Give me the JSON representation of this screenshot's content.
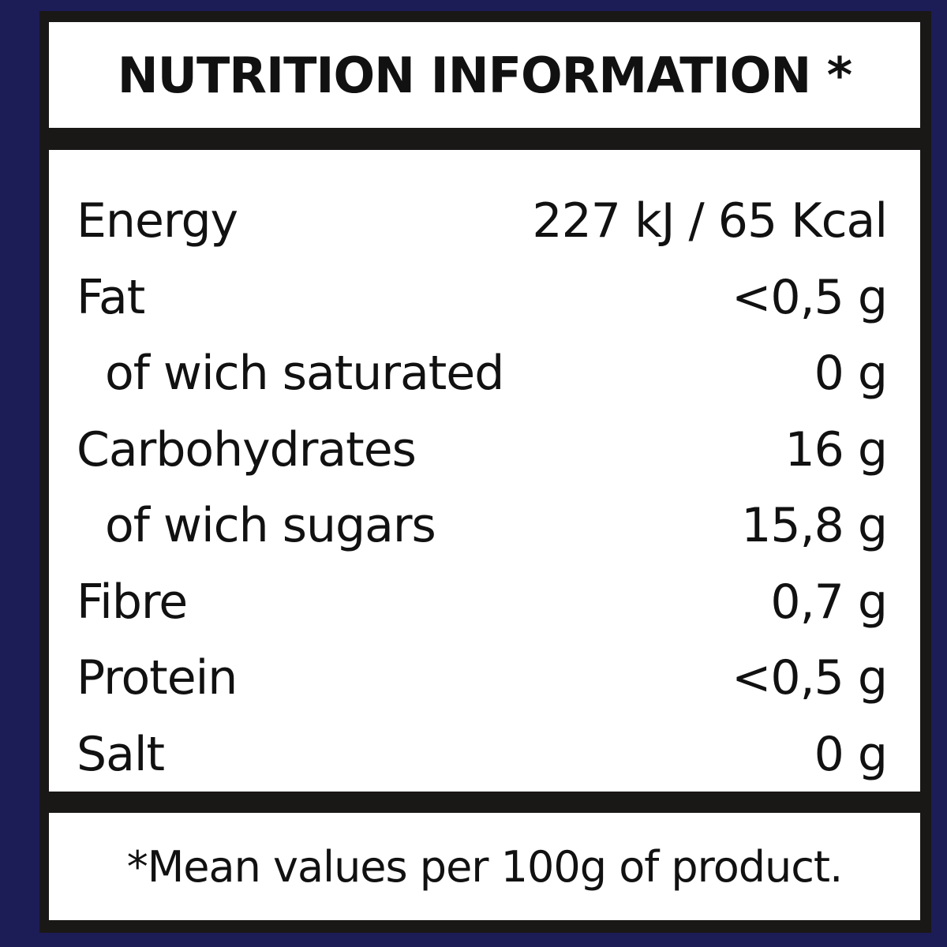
{
  "title": "NUTRITION INFORMATION *",
  "rows": [
    {
      "label": "Energy",
      "value": "227 kJ / 65 Kcal",
      "sub": false
    },
    {
      "label": "Fat",
      "value": "<0,5 g",
      "sub": false
    },
    {
      "label": "of wich saturated",
      "value": "0 g",
      "sub": true
    },
    {
      "label": "Carbohydrates",
      "value": "16 g",
      "sub": false
    },
    {
      "label": "of wich sugars",
      "value": "15,8 g",
      "sub": true
    },
    {
      "label": "Fibre",
      "value": "0,7 g",
      "sub": false
    },
    {
      "label": "Protein",
      "value": "<0,5 g",
      "sub": false
    },
    {
      "label": "Salt",
      "value": "0 g",
      "sub": false
    }
  ],
  "footnote": "*Mean values per 100g of product.",
  "colors": {
    "background": "#1c1d56",
    "frame": "#1a1717",
    "panel": "#ffffff"
  }
}
